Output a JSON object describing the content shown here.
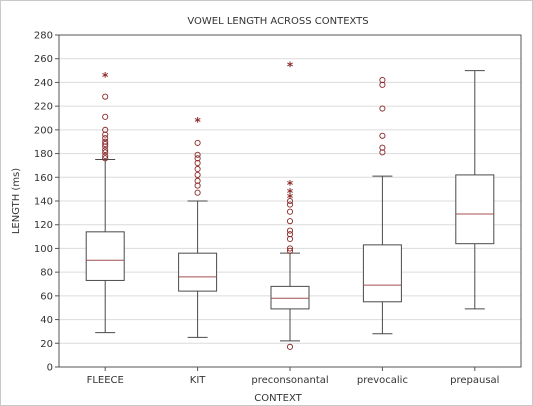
{
  "chart_data": {
    "type": "boxplot",
    "title": "VOWEL LENGTH ACROSS CONTEXTS",
    "xlabel": "CONTEXT",
    "ylabel": "LENGTH (ms)",
    "ylim": [
      0,
      280
    ],
    "yticks": [
      0,
      20,
      40,
      60,
      80,
      100,
      120,
      140,
      160,
      180,
      200,
      220,
      240,
      260,
      280
    ],
    "grid": true,
    "categories": [
      "FLEECE",
      "KIT",
      "preconsonantal",
      "prevocalic",
      "prepausal"
    ],
    "boxes": [
      {
        "category": "FLEECE",
        "whisker_low": 29,
        "q1": 73,
        "median": 90,
        "q3": 114,
        "whisker_high": 175,
        "outliers": [
          176,
          178,
          181,
          183,
          186,
          188,
          190,
          193,
          196,
          200,
          211,
          228
        ],
        "extremes": [
          245
        ]
      },
      {
        "category": "KIT",
        "whisker_low": 25,
        "q1": 64,
        "median": 76,
        "q3": 96,
        "whisker_high": 140,
        "outliers": [
          147,
          153,
          157,
          162,
          167,
          172,
          176,
          179,
          189
        ],
        "extremes": [
          207
        ]
      },
      {
        "category": "preconsonantal",
        "whisker_low": 22,
        "q1": 49,
        "median": 58,
        "q3": 68,
        "whisker_high": 96,
        "outliers": [
          17,
          98,
          100,
          108,
          112,
          115,
          123,
          131,
          137,
          140
        ],
        "extremes": [
          143,
          147,
          154,
          254
        ]
      },
      {
        "category": "prevocalic",
        "whisker_low": 28,
        "q1": 55,
        "median": 69,
        "q3": 103,
        "whisker_high": 161,
        "outliers": [
          181,
          185,
          195,
          218,
          238,
          242
        ],
        "extremes": []
      },
      {
        "category": "prepausal",
        "whisker_low": 49,
        "q1": 104,
        "median": 129,
        "q3": 162,
        "whisker_high": 250,
        "outliers": [],
        "extremes": []
      }
    ],
    "colors": {
      "box": "#4a4a4a",
      "median": "#a05050",
      "marker": "#8b2a2a",
      "grid": "#dcdcdc",
      "axis": "#555555"
    }
  }
}
